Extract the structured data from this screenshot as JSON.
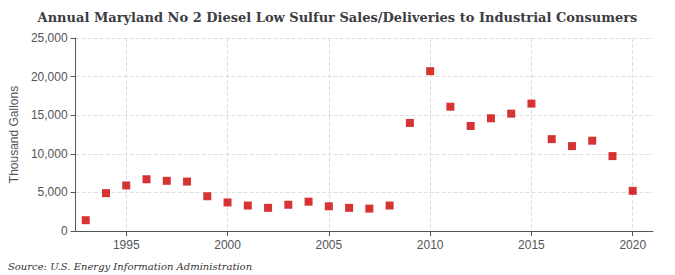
{
  "chart_data": {
    "type": "scatter",
    "title": "Annual Maryland No 2 Diesel Low Sulfur Sales/Deliveries to Industrial Consumers",
    "y_label": "Thousand Gallons",
    "annotation": "Source: U.S. Energy Information Administration",
    "x": [
      1993,
      1994,
      1995,
      1996,
      1997,
      1998,
      1999,
      2000,
      2001,
      2002,
      2003,
      2004,
      2005,
      2006,
      2007,
      2008,
      2009,
      2010,
      2011,
      2012,
      2013,
      2014,
      2015,
      2016,
      2017,
      2018,
      2019,
      2020
    ],
    "values": [
      1400,
      4900,
      5900,
      6700,
      6500,
      6400,
      4500,
      3700,
      3300,
      3000,
      3400,
      3800,
      3200,
      3000,
      2900,
      3300,
      14000,
      20700,
      16100,
      13600,
      14600,
      15200,
      16500,
      11900,
      11000,
      11700,
      9700,
      5200
    ],
    "color": "#cc0000",
    "marker": "square",
    "xlim": [
      1992.5,
      2021
    ],
    "xticks": [
      1995,
      2000,
      2005,
      2010,
      2015,
      2020
    ],
    "ylim": [
      0,
      25000
    ],
    "yticks": [
      0,
      {
        "value": 5000,
        "label": "5,000"
      },
      {
        "value": 10000,
        "label": "10,000"
      },
      {
        "value": 15000,
        "label": "15,000"
      },
      {
        "value": 20000,
        "label": "20,000"
      },
      {
        "value": 25000,
        "label": "25,000"
      }
    ],
    "grid": true
  }
}
